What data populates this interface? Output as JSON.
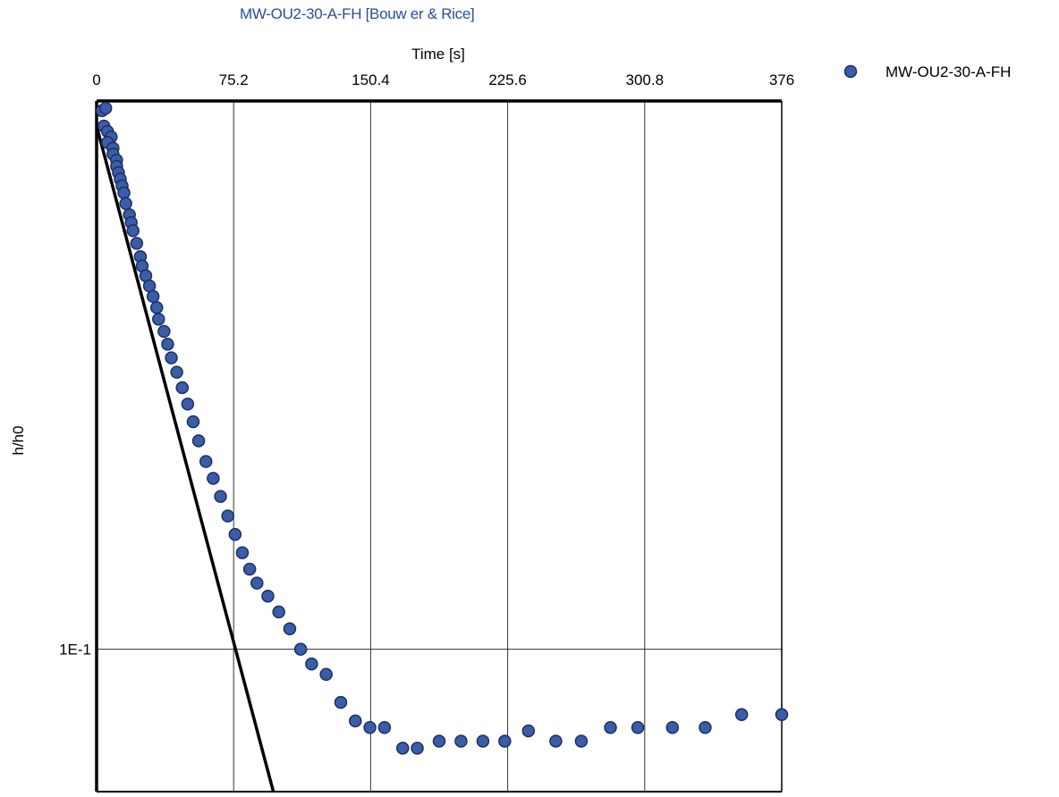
{
  "chart_data": {
    "type": "scatter",
    "title": "MW-OU2-30-A-FH [Bouw er & Rice]",
    "xlabel": "Time [s]",
    "ylabel": "h/h0",
    "x_ticks": [
      "0",
      "75.2",
      "150.4",
      "225.6",
      "300.8",
      "376"
    ],
    "y_ticks": [
      "1E-1"
    ],
    "xlim": [
      0,
      376
    ],
    "ylim": [
      0.055,
      1.0
    ],
    "y_scale": "log",
    "x_axis_position": "top",
    "grid": true,
    "legend_position": "top-right",
    "colors": {
      "marker": "#3a5da8",
      "marker_edge": "#1c2f63",
      "fit_line": "#000000",
      "title": "#2a4f93"
    },
    "series": [
      {
        "name": "MW-OU2-30-A-FH",
        "x": [
          3,
          5,
          4,
          6,
          8,
          6,
          9,
          9,
          11,
          11,
          12,
          13,
          14,
          15,
          16,
          18,
          19,
          20,
          22,
          24,
          25,
          27,
          29,
          31,
          33,
          34,
          37,
          39,
          41,
          44,
          47,
          50,
          53,
          56,
          60,
          64,
          68,
          72,
          76,
          80,
          84,
          88,
          94,
          100,
          106,
          112,
          118,
          126,
          134,
          142,
          150,
          158,
          168,
          176,
          188,
          200,
          212,
          224,
          237,
          252,
          266,
          282,
          297,
          316,
          334,
          354,
          376
        ],
        "y": [
          0.96,
          0.97,
          0.9,
          0.88,
          0.86,
          0.84,
          0.82,
          0.8,
          0.78,
          0.76,
          0.74,
          0.72,
          0.7,
          0.68,
          0.65,
          0.62,
          0.6,
          0.58,
          0.55,
          0.52,
          0.5,
          0.48,
          0.46,
          0.44,
          0.42,
          0.4,
          0.38,
          0.36,
          0.34,
          0.32,
          0.3,
          0.28,
          0.26,
          0.24,
          0.22,
          0.205,
          0.19,
          0.175,
          0.162,
          0.15,
          0.14,
          0.132,
          0.125,
          0.117,
          0.109,
          0.1,
          0.094,
          0.09,
          0.08,
          0.074,
          0.072,
          0.072,
          0.066,
          0.066,
          0.068,
          0.068,
          0.068,
          0.068,
          0.071,
          0.068,
          0.068,
          0.072,
          0.072,
          0.072,
          0.072,
          0.076,
          0.076
        ]
      }
    ],
    "fit_line": {
      "x": [
        0,
        97
      ],
      "y": [
        0.9,
        0.055
      ]
    }
  }
}
